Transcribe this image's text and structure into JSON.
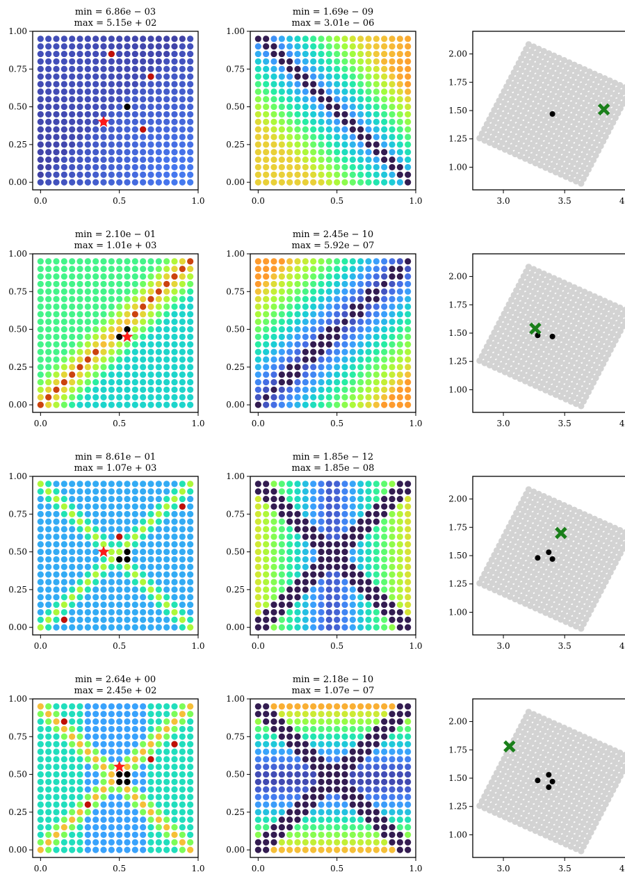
{
  "chart_data": [
    {
      "type": "scatter",
      "row": 0,
      "col": 0,
      "kind": "field",
      "title_min": "min = 6.86e − 03",
      "title_max": "max = 5.15e + 02",
      "xlim": [
        -0.05,
        1.0
      ],
      "ylim": [
        -0.05,
        1.0
      ],
      "xticks": [
        "0.0",
        "0.5",
        "1.0"
      ],
      "yticks": [
        "0.00",
        "0.25",
        "0.50",
        "0.75",
        "1.00"
      ],
      "grid": "20x20 unit square, turbo colormap",
      "pattern": "anti_diagonal_valley",
      "black_points": [
        [
          0.55,
          0.5
        ]
      ],
      "red_points": [
        [
          0.4,
          0.4
        ],
        [
          0.7,
          0.7
        ],
        [
          0.65,
          0.35
        ],
        [
          0.45,
          0.85
        ]
      ],
      "star": [
        0.4,
        0.4
      ]
    },
    {
      "type": "scatter",
      "row": 0,
      "col": 1,
      "kind": "field",
      "title_min": "min = 1.69e − 09",
      "title_max": "max = 3.01e − 06",
      "xlim": [
        -0.05,
        1.0
      ],
      "ylim": [
        -0.05,
        1.0
      ],
      "xticks": [
        "0.0",
        "0.5",
        "1.0"
      ],
      "yticks": [
        "0.00",
        "0.25",
        "0.50",
        "0.75",
        "1.00"
      ],
      "pattern": "anti_diagonal_dark_band"
    },
    {
      "type": "scatter",
      "row": 0,
      "col": 2,
      "kind": "domain",
      "xlim": [
        2.75,
        4.1
      ],
      "ylim": [
        0.8,
        2.2
      ],
      "xticks": [
        "3.0",
        "3.5",
        "4.0"
      ],
      "yticks": [
        "1.00",
        "1.25",
        "1.50",
        "1.75",
        "2.00"
      ],
      "domain_center": [
        3.42,
        1.47
      ],
      "black_points": [
        [
          3.4,
          1.47
        ]
      ],
      "cross": [
        3.82,
        1.51
      ]
    },
    {
      "type": "scatter",
      "row": 1,
      "col": 0,
      "kind": "field",
      "title_min": "min = 2.10e − 01",
      "title_max": "max = 1.01e + 03",
      "xlim": [
        -0.05,
        1.0
      ],
      "ylim": [
        -0.05,
        1.0
      ],
      "xticks": [
        "0.0",
        "0.5",
        "1.0"
      ],
      "yticks": [
        "0.00",
        "0.25",
        "0.50",
        "0.75",
        "1.00"
      ],
      "pattern": "main_diagonal_ridge",
      "black_points": [
        [
          0.5,
          0.45
        ],
        [
          0.55,
          0.5
        ]
      ],
      "star": [
        0.55,
        0.45
      ]
    },
    {
      "type": "scatter",
      "row": 1,
      "col": 1,
      "kind": "field",
      "title_min": "min = 2.45e − 10",
      "title_max": "max = 5.92e − 07",
      "xlim": [
        -0.05,
        1.0
      ],
      "ylim": [
        -0.05,
        1.0
      ],
      "xticks": [
        "0.0",
        "0.5",
        "1.0"
      ],
      "yticks": [
        "0.00",
        "0.25",
        "0.50",
        "0.75",
        "1.00"
      ],
      "pattern": "main_diagonal_dark_band"
    },
    {
      "type": "scatter",
      "row": 1,
      "col": 2,
      "kind": "domain",
      "xlim": [
        2.75,
        4.1
      ],
      "ylim": [
        0.8,
        2.2
      ],
      "xticks": [
        "3.0",
        "3.5",
        "4.0"
      ],
      "yticks": [
        "1.00",
        "1.25",
        "1.50",
        "1.75",
        "2.00"
      ],
      "domain_center": [
        3.42,
        1.47
      ],
      "black_points": [
        [
          3.28,
          1.48
        ],
        [
          3.4,
          1.47
        ]
      ],
      "cross": [
        3.26,
        1.54
      ]
    },
    {
      "type": "scatter",
      "row": 2,
      "col": 0,
      "kind": "field",
      "title_min": "min = 8.61e − 01",
      "title_max": "max = 1.07e + 03",
      "xlim": [
        -0.05,
        1.0
      ],
      "ylim": [
        -0.05,
        1.0
      ],
      "xticks": [
        "0.0",
        "0.5",
        "1.0"
      ],
      "yticks": [
        "0.00",
        "0.25",
        "0.50",
        "0.75",
        "1.00"
      ],
      "pattern": "x_cross_ridges",
      "black_points": [
        [
          0.5,
          0.45
        ],
        [
          0.55,
          0.45
        ],
        [
          0.55,
          0.5
        ]
      ],
      "red_points": [
        [
          0.5,
          0.6
        ],
        [
          0.9,
          0.8
        ],
        [
          0.15,
          0.05
        ]
      ],
      "star": [
        0.4,
        0.5
      ]
    },
    {
      "type": "scatter",
      "row": 2,
      "col": 1,
      "kind": "field",
      "title_min": "min = 1.85e − 12",
      "title_max": "max = 1.85e − 08",
      "xlim": [
        -0.05,
        1.0
      ],
      "ylim": [
        -0.05,
        1.0
      ],
      "xticks": [
        "0.0",
        "0.5",
        "1.0"
      ],
      "yticks": [
        "0.00",
        "0.25",
        "0.50",
        "0.75",
        "1.00"
      ],
      "pattern": "x_dark_bands"
    },
    {
      "type": "scatter",
      "row": 2,
      "col": 2,
      "kind": "domain",
      "xlim": [
        2.75,
        4.1
      ],
      "ylim": [
        0.8,
        2.2
      ],
      "xticks": [
        "3.0",
        "3.5",
        "4.0"
      ],
      "yticks": [
        "1.00",
        "1.25",
        "1.50",
        "1.75",
        "2.00"
      ],
      "domain_center": [
        3.42,
        1.47
      ],
      "black_points": [
        [
          3.28,
          1.48
        ],
        [
          3.37,
          1.53
        ],
        [
          3.4,
          1.47
        ]
      ],
      "cross": [
        3.47,
        1.7
      ]
    },
    {
      "type": "scatter",
      "row": 3,
      "col": 0,
      "kind": "field",
      "title_min": "min = 2.64e + 00",
      "title_max": "max = 2.45e + 02",
      "xlim": [
        -0.05,
        1.0
      ],
      "ylim": [
        -0.05,
        1.0
      ],
      "xticks": [
        "0.0",
        "0.5",
        "1.0"
      ],
      "yticks": [
        "0.00",
        "0.25",
        "0.50",
        "0.75",
        "1.00"
      ],
      "pattern": "x_cross_ridges_fine",
      "black_points": [
        [
          0.5,
          0.45
        ],
        [
          0.55,
          0.45
        ],
        [
          0.5,
          0.5
        ],
        [
          0.55,
          0.5
        ]
      ],
      "red_points": [
        [
          0.85,
          0.7
        ],
        [
          0.7,
          0.6
        ],
        [
          0.3,
          0.3
        ],
        [
          0.15,
          0.85
        ]
      ],
      "star": [
        0.5,
        0.55
      ]
    },
    {
      "type": "scatter",
      "row": 3,
      "col": 1,
      "kind": "field",
      "title_min": "min = 2.18e − 10",
      "title_max": "max = 1.07e − 07",
      "xlim": [
        -0.05,
        1.0
      ],
      "ylim": [
        -0.05,
        1.0
      ],
      "xticks": [
        "0.0",
        "0.5",
        "1.0"
      ],
      "yticks": [
        "0.00",
        "0.25",
        "0.50",
        "0.75",
        "1.00"
      ],
      "pattern": "x_dark_bands_horizontal"
    },
    {
      "type": "scatter",
      "row": 3,
      "col": 2,
      "kind": "domain",
      "xlim": [
        2.75,
        4.1
      ],
      "ylim": [
        0.8,
        2.2
      ],
      "xticks": [
        "3.0",
        "3.5",
        "4.0"
      ],
      "yticks": [
        "1.00",
        "1.25",
        "1.50",
        "1.75",
        "2.00"
      ],
      "domain_center": [
        3.42,
        1.47
      ],
      "black_points": [
        [
          3.28,
          1.48
        ],
        [
          3.37,
          1.53
        ],
        [
          3.4,
          1.47
        ],
        [
          3.37,
          1.42
        ]
      ],
      "cross": [
        3.05,
        1.78
      ]
    }
  ],
  "colors": {
    "star": "#ff1a1a",
    "cross": "#1a7f1a",
    "domain_dots": "#d3d3d3",
    "black_points": "#000000"
  }
}
